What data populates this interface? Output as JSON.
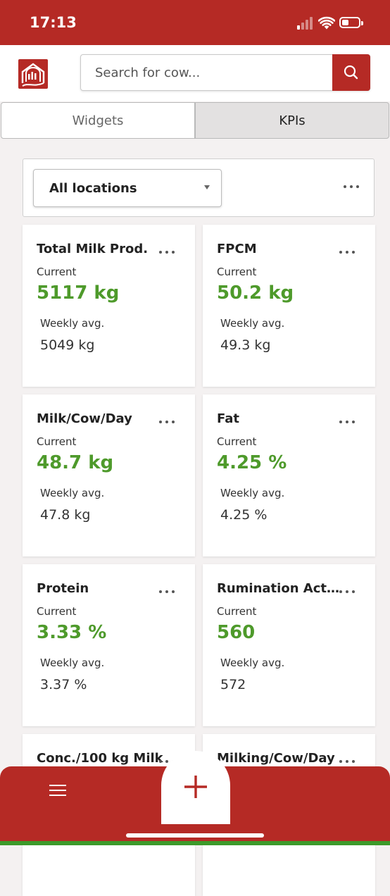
{
  "status_bar": {
    "time": "17:13"
  },
  "search": {
    "placeholder": "Search for cow..."
  },
  "tabs": [
    {
      "label": "Widgets",
      "active": false
    },
    {
      "label": "KPIs",
      "active": true
    }
  ],
  "filter": {
    "location": "All locations"
  },
  "kpis": [
    {
      "title": "Total Milk Prod.",
      "current_label": "Current",
      "current": "5117 kg",
      "avg_label": "Weekly avg.",
      "avg": "5049 kg"
    },
    {
      "title": "FPCM",
      "current_label": "Current",
      "current": "50.2 kg",
      "avg_label": "Weekly avg.",
      "avg": "49.3 kg"
    },
    {
      "title": "Milk/Cow/Day",
      "current_label": "Current",
      "current": "48.7 kg",
      "avg_label": "Weekly avg.",
      "avg": "47.8 kg"
    },
    {
      "title": "Fat",
      "current_label": "Current",
      "current": "4.25 %",
      "avg_label": "Weekly avg.",
      "avg": "4.25 %"
    },
    {
      "title": "Protein",
      "current_label": "Current",
      "current": "3.33 %",
      "avg_label": "Weekly avg.",
      "avg": "3.37 %"
    },
    {
      "title": "Rumination Activ...",
      "current_label": "Current",
      "current": "560",
      "avg_label": "Weekly avg.",
      "avg": "572"
    },
    {
      "title": "Conc./100 kg Milk",
      "current_label": "",
      "current": "",
      "avg_label": "",
      "avg": ""
    },
    {
      "title": "Milking/Cow/Day",
      "current_label": "",
      "current": "",
      "avg_label": "",
      "avg": ""
    }
  ],
  "colors": {
    "brand": "#b52a25",
    "value": "#4e9a2b",
    "accent_bottom": "#3c9a2a"
  },
  "icons": [
    "signal-icon",
    "wifi-icon",
    "battery-icon",
    "barn-logo-icon",
    "search-icon",
    "more-icon",
    "hamburger-menu-icon",
    "plus-icon"
  ]
}
